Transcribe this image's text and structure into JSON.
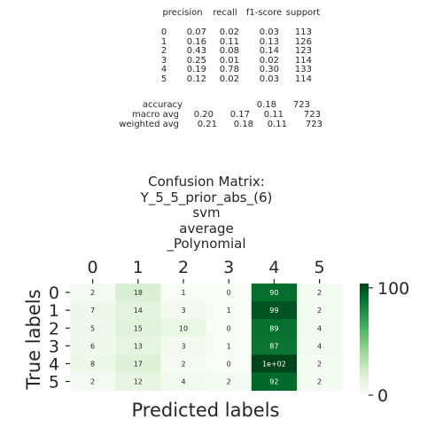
{
  "report": {
    "headers": [
      "precision",
      "recall",
      "f1-score",
      "support"
    ],
    "rows": [
      {
        "label": "0",
        "precision": "0.07",
        "recall": "0.02",
        "f1": "0.03",
        "support": "113"
      },
      {
        "label": "1",
        "precision": "0.16",
        "recall": "0.11",
        "f1": "0.13",
        "support": "126"
      },
      {
        "label": "2",
        "precision": "0.43",
        "recall": "0.08",
        "f1": "0.14",
        "support": "123"
      },
      {
        "label": "3",
        "precision": "0.25",
        "recall": "0.01",
        "f1": "0.02",
        "support": "114"
      },
      {
        "label": "4",
        "precision": "0.19",
        "recall": "0.78",
        "f1": "0.30",
        "support": "133"
      },
      {
        "label": "5",
        "precision": "0.12",
        "recall": "0.02",
        "f1": "0.03",
        "support": "114"
      }
    ],
    "accuracy": {
      "label": "accuracy",
      "f1": "0.18",
      "support": "723"
    },
    "macro": {
      "label": "macro avg",
      "precision": "0.20",
      "recall": "0.17",
      "f1": "0.11",
      "support": "723"
    },
    "weighted": {
      "label": "weighted avg",
      "precision": "0.21",
      "recall": "0.18",
      "f1": "0.11",
      "support": "723"
    }
  },
  "chart_data": {
    "type": "heatmap",
    "title_lines": [
      "Confusion Matrix:",
      "Y_5_5_prior_abs_(6)",
      "svm",
      "average",
      "_Polynomial"
    ],
    "xlabel": "Predicted labels",
    "ylabel": "True labels",
    "x_categories": [
      "0",
      "1",
      "2",
      "3",
      "4",
      "5"
    ],
    "y_categories": [
      "0",
      "1",
      "2",
      "3",
      "4",
      "5"
    ],
    "values": [
      [
        2,
        18,
        1,
        0,
        90,
        2
      ],
      [
        7,
        14,
        3,
        1,
        99,
        2
      ],
      [
        5,
        15,
        10,
        0,
        89,
        4
      ],
      [
        6,
        13,
        3,
        1,
        87,
        4
      ],
      [
        8,
        17,
        2,
        0,
        104,
        2
      ],
      [
        2,
        12,
        4,
        2,
        92,
        2
      ]
    ],
    "cell_labels": [
      [
        "2",
        "18",
        "1",
        "0",
        "90",
        "2"
      ],
      [
        "7",
        "14",
        "3",
        "1",
        "99",
        "2"
      ],
      [
        "5",
        "15",
        "10",
        "0",
        "89",
        "4"
      ],
      [
        "6",
        "13",
        "3",
        "1",
        "87",
        "4"
      ],
      [
        "8",
        "17",
        "2",
        "0",
        "1e+02",
        "2"
      ],
      [
        "2",
        "12",
        "4",
        "2",
        "92",
        "2"
      ]
    ],
    "colormap": "Greens",
    "colorbar": {
      "min": 0,
      "max": 104,
      "ticks": [
        "0",
        "100"
      ],
      "tick_values": [
        0,
        100
      ]
    },
    "x_ticks_position": "top",
    "grid": false
  }
}
